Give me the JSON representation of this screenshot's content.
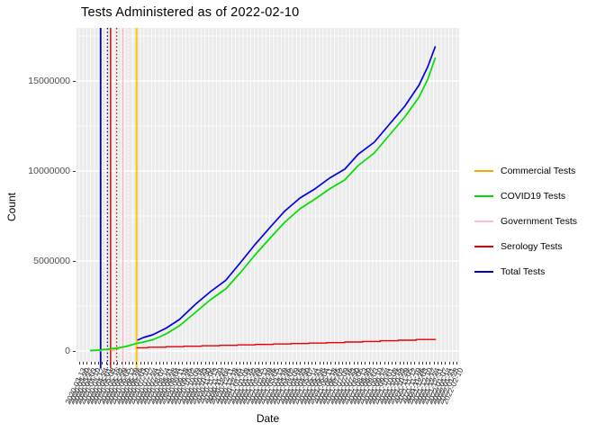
{
  "header": {
    "title": "Tests Administered as of 2022-02-10"
  },
  "chart_data": {
    "type": "line",
    "title": "Tests Administered as of 2022-02-10",
    "xlabel": "Date",
    "ylabel": "Count",
    "ylim": [
      0,
      17950000
    ],
    "grid": "on",
    "panel_bg": "#EBEBEB",
    "grid_color": "#FFFFFF",
    "legend_position": "right",
    "y_ticks": [
      {
        "value": 0,
        "label": "0"
      },
      {
        "value": 5000000,
        "label": "5000000"
      },
      {
        "value": 10000000,
        "label": "10000000"
      },
      {
        "value": 15000000,
        "label": "15000000"
      }
    ],
    "x_tick_labels": [
      "2020-03-13",
      "2020-03-20",
      "2020-03-27",
      "2020-04-03",
      "2020-04-10",
      "2020-04-17",
      "2020-04-24",
      "2020-05-01",
      "2020-05-08",
      "2020-05-15",
      "2020-05-22",
      "2020-05-29",
      "2020-06-05",
      "2020-06-12",
      "2020-06-19",
      "2020-06-26",
      "2020-07-03",
      "2020-07-10",
      "2020-07-17",
      "2020-07-24",
      "2020-07-31",
      "2020-08-07",
      "2020-08-14",
      "2020-08-21",
      "2020-08-28",
      "2020-09-04",
      "2020-09-11",
      "2020-09-18",
      "2020-09-25",
      "2020-10-02",
      "2020-10-09",
      "2020-10-16",
      "2020-10-23",
      "2020-10-30",
      "2020-11-06",
      "2020-11-13",
      "2020-11-20",
      "2020-11-27",
      "2020-12-04",
      "2020-12-11",
      "2020-12-18",
      "2020-12-25",
      "2021-01-01",
      "2021-01-08",
      "2021-01-15",
      "2021-01-22",
      "2021-01-29",
      "2021-02-05",
      "2021-02-12",
      "2021-02-19",
      "2021-02-26",
      "2021-03-05",
      "2021-03-12",
      "2021-03-19",
      "2021-03-26",
      "2021-04-02",
      "2021-04-09",
      "2021-04-16",
      "2021-04-23",
      "2021-04-30",
      "2021-05-07",
      "2021-05-14",
      "2021-05-21",
      "2021-05-28",
      "2021-06-04",
      "2021-06-11",
      "2021-06-18",
      "2021-06-25",
      "2021-07-02",
      "2021-07-09",
      "2021-07-16",
      "2021-07-23",
      "2021-07-30",
      "2021-08-06",
      "2021-08-13",
      "2021-08-20",
      "2021-08-27",
      "2021-09-03",
      "2021-09-10",
      "2021-09-17",
      "2021-09-24",
      "2021-10-01",
      "2021-10-08",
      "2021-10-15",
      "2021-10-22",
      "2021-10-29",
      "2021-11-05",
      "2021-11-12",
      "2021-11-19",
      "2021-11-26",
      "2021-12-03",
      "2021-12-10",
      "2021-12-17",
      "2021-12-24",
      "2021-12-31",
      "2022-01-07",
      "2022-01-14",
      "2022-01-21",
      "2022-01-28",
      "2022-02-10"
    ],
    "series": [
      {
        "name": "Commercial Tests",
        "color": "#FFA500",
        "dash": "solid",
        "width": 1.6,
        "points": [
          [
            0.065,
            80000
          ],
          [
            0.09,
            100000
          ],
          [
            0.112,
            125000
          ]
        ]
      },
      {
        "name": "Government Tests",
        "color": "#FFC0CB",
        "dash": "dashed",
        "width": 1.3,
        "points": [
          [
            0.042,
            15000
          ],
          [
            0.105,
            15000
          ]
        ]
      },
      {
        "name": "COVID19 Tests",
        "color": "#00DD00",
        "dash": "solid",
        "width": 1.7,
        "points": [
          [
            0.035,
            20000
          ],
          [
            0.058,
            50000
          ],
          [
            0.082,
            100000
          ],
          [
            0.105,
            160000
          ],
          [
            0.129,
            250000
          ],
          [
            0.157,
            420000
          ],
          [
            0.175,
            500000
          ],
          [
            0.199,
            620000
          ],
          [
            0.234,
            950000
          ],
          [
            0.269,
            1400000
          ],
          [
            0.311,
            2150000
          ],
          [
            0.35,
            2850000
          ],
          [
            0.39,
            3450000
          ],
          [
            0.428,
            4350000
          ],
          [
            0.467,
            5350000
          ],
          [
            0.507,
            6300000
          ],
          [
            0.544,
            7150000
          ],
          [
            0.584,
            7900000
          ],
          [
            0.624,
            8450000
          ],
          [
            0.661,
            9000000
          ],
          [
            0.701,
            9500000
          ],
          [
            0.736,
            10300000
          ],
          [
            0.778,
            11000000
          ],
          [
            0.818,
            12000000
          ],
          [
            0.858,
            13000000
          ],
          [
            0.895,
            14100000
          ],
          [
            0.918,
            15100000
          ],
          [
            0.938,
            16300000
          ]
        ]
      },
      {
        "name": "Serology Tests",
        "color": "#E60000",
        "dash": "solid",
        "width": 1.4,
        "step": true,
        "points": [
          [
            0.157,
            180000
          ],
          [
            0.187,
            210000
          ],
          [
            0.234,
            240000
          ],
          [
            0.28,
            265000
          ],
          [
            0.327,
            290000
          ],
          [
            0.374,
            315000
          ],
          [
            0.421,
            340000
          ],
          [
            0.467,
            365000
          ],
          [
            0.514,
            390000
          ],
          [
            0.561,
            415000
          ],
          [
            0.607,
            440000
          ],
          [
            0.654,
            465000
          ],
          [
            0.701,
            500000
          ],
          [
            0.748,
            530000
          ],
          [
            0.794,
            570000
          ],
          [
            0.841,
            600000
          ],
          [
            0.888,
            640000
          ],
          [
            0.938,
            665000
          ]
        ]
      },
      {
        "name": "Total Tests",
        "color": "#0000DD",
        "dash": "solid",
        "width": 1.7,
        "points": [
          [
            0.159,
            600000
          ],
          [
            0.175,
            750000
          ],
          [
            0.199,
            900000
          ],
          [
            0.234,
            1270000
          ],
          [
            0.269,
            1750000
          ],
          [
            0.311,
            2600000
          ],
          [
            0.35,
            3300000
          ],
          [
            0.39,
            3930000
          ],
          [
            0.428,
            4900000
          ],
          [
            0.467,
            5930000
          ],
          [
            0.507,
            6900000
          ],
          [
            0.544,
            7770000
          ],
          [
            0.584,
            8500000
          ],
          [
            0.624,
            9020000
          ],
          [
            0.661,
            9600000
          ],
          [
            0.701,
            10100000
          ],
          [
            0.736,
            10930000
          ],
          [
            0.778,
            11600000
          ],
          [
            0.818,
            12600000
          ],
          [
            0.858,
            13600000
          ],
          [
            0.895,
            14770000
          ],
          [
            0.918,
            15800000
          ],
          [
            0.938,
            16930000
          ]
        ]
      }
    ],
    "vlines": [
      {
        "x": 0.063,
        "color": "#0000CC",
        "style": "solid",
        "width": 1.8
      },
      {
        "x": 0.081,
        "color": "#00008B",
        "style": "dotted",
        "width": 1.3
      },
      {
        "x": 0.089,
        "color": "#CC0000",
        "style": "solid",
        "width": 1.4
      },
      {
        "x": 0.105,
        "color": "#CC0000",
        "style": "dotted",
        "width": 1.3
      },
      {
        "x": 0.121,
        "color": "#FFB6C1",
        "style": "solid",
        "width": 1.3
      },
      {
        "x": 0.138,
        "color": "#FFCCD5",
        "style": "dotted",
        "width": 1.2
      },
      {
        "x": 0.157,
        "color": "#FFC800",
        "style": "solid",
        "width": 2.0
      }
    ],
    "legend": {
      "entries": [
        {
          "label": "Commercial Tests",
          "color": "#FFA500"
        },
        {
          "label": "COVID19 Tests",
          "color": "#00DD00"
        },
        {
          "label": "Government Tests",
          "color": "#FFC0CB"
        },
        {
          "label": "Serology Tests",
          "color": "#E60000"
        },
        {
          "label": "Total Tests",
          "color": "#0000CC"
        }
      ]
    }
  }
}
